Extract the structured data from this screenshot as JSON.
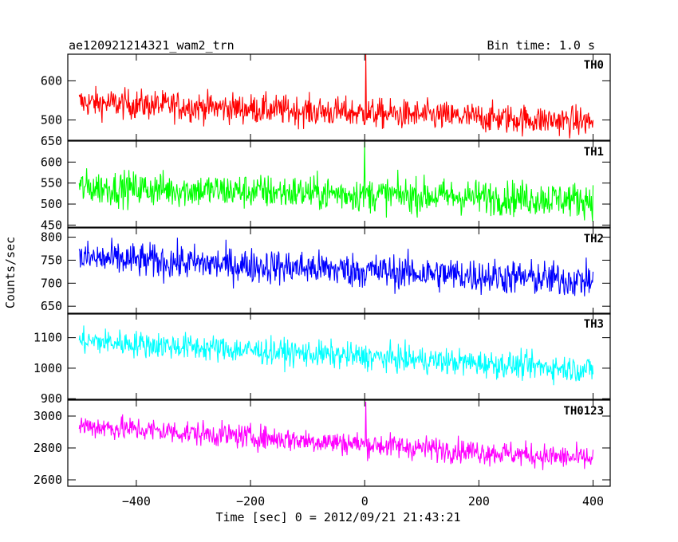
{
  "header": {
    "title": "ae120921214321_wam2_trn",
    "bin_time": "Bin time: 1.0 s"
  },
  "chart_data": {
    "type": "line",
    "title": "ae120921214321_wam2_trn",
    "subtitle": "Bin time: 1.0 s",
    "xlabel": "Time [sec] 0 = 2012/09/21 21:43:21",
    "ylabel": "Counts/sec",
    "xlim": [
      -520,
      430
    ],
    "x_range": [
      -500,
      400
    ],
    "x_ticks": [
      -400,
      -200,
      0,
      200,
      400
    ],
    "x_tick_labels": [
      "−400",
      "−200",
      "0",
      "200",
      "400"
    ],
    "line_color_note": "single light-curve line per panel",
    "panels": [
      {
        "name": "TH0",
        "color": "#ff0000",
        "ylim": [
          448,
          668
        ],
        "y_ticks": [
          500,
          600
        ],
        "y_tick_labels": [
          "500",
          "600"
        ],
        "start_mean": 545,
        "end_mean": 495,
        "spread": 35,
        "peaks": [
          {
            "x": 2,
            "y": 668
          }
        ],
        "series": [
          {
            "x": -500,
            "y": 545
          },
          {
            "x": 400,
            "y": 495
          }
        ]
      },
      {
        "name": "TH1",
        "color": "#00ff00",
        "ylim": [
          445,
          650
        ],
        "y_ticks": [
          450,
          500,
          550,
          600,
          650
        ],
        "y_tick_labels": [
          "450",
          "500",
          "550",
          "600",
          "650"
        ],
        "start_mean": 540,
        "end_mean": 510,
        "spread": 38,
        "peaks": [
          {
            "x": 0,
            "y": 648
          }
        ],
        "series": [
          {
            "x": -500,
            "y": 540
          },
          {
            "x": 400,
            "y": 510
          }
        ]
      },
      {
        "name": "TH2",
        "color": "#0000ff",
        "ylim": [
          633,
          820
        ],
        "y_ticks": [
          650,
          700,
          750,
          800
        ],
        "y_tick_labels": [
          "650",
          "700",
          "750",
          "800"
        ],
        "start_mean": 755,
        "end_mean": 705,
        "spread": 35,
        "peaks": [],
        "series": [
          {
            "x": -500,
            "y": 755
          },
          {
            "x": 400,
            "y": 705
          }
        ]
      },
      {
        "name": "TH3",
        "color": "#00ffff",
        "ylim": [
          898,
          1180
        ],
        "y_ticks": [
          900,
          1000,
          1100
        ],
        "y_tick_labels": [
          "900",
          "1000",
          "1100"
        ],
        "start_mean": 1090,
        "end_mean": 995,
        "spread": 40,
        "peaks": [],
        "series": [
          {
            "x": -500,
            "y": 1090
          },
          {
            "x": 400,
            "y": 995
          }
        ]
      },
      {
        "name": "TH0123",
        "color": "#ff00ff",
        "ylim": [
          2560,
          3100
        ],
        "y_ticks": [
          2600,
          2800,
          3000
        ],
        "y_tick_labels": [
          "2600",
          "2800",
          "3000"
        ],
        "start_mean": 2940,
        "end_mean": 2730,
        "spread": 70,
        "peaks": [
          {
            "x": 2,
            "y": 3090
          }
        ],
        "series": [
          {
            "x": -500,
            "y": 2940
          },
          {
            "x": 400,
            "y": 2730
          }
        ]
      }
    ],
    "grid": false,
    "legend": "panel labels at top-right of each panel"
  }
}
